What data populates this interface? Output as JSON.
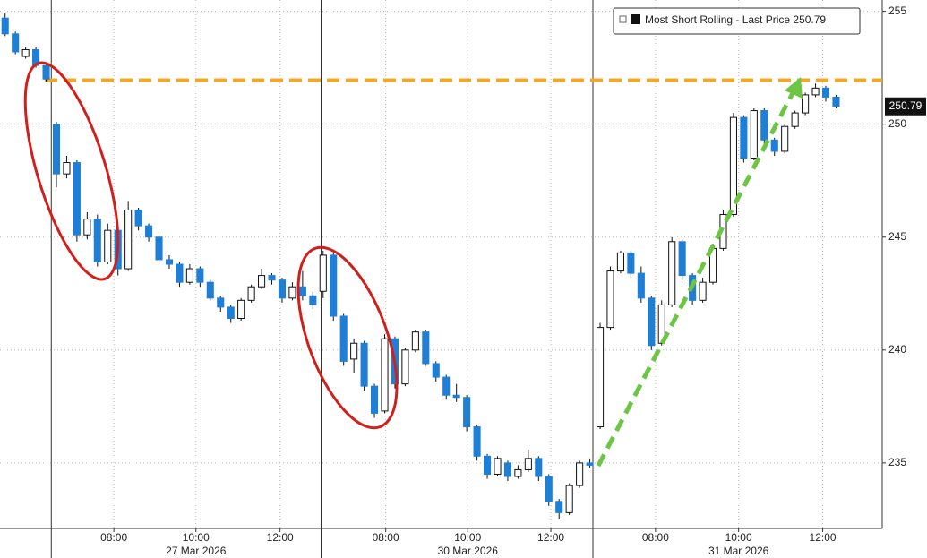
{
  "chart_data": {
    "type": "candlestick",
    "series": [
      {
        "name": "Most Short Rolling - Last Price 250.79",
        "color": "#1f7fd6",
        "up_color": "#ffffff",
        "x": [
          0,
          1,
          2,
          3,
          4,
          5,
          6,
          7,
          8,
          9,
          10,
          11,
          12,
          13,
          14,
          15,
          16,
          17,
          18,
          19,
          20,
          21,
          22,
          23,
          24,
          25,
          26,
          27,
          28,
          29,
          30,
          31,
          32,
          33,
          34,
          35,
          36,
          37,
          38,
          39,
          40,
          41,
          42,
          43,
          44,
          45,
          46,
          47,
          48,
          49,
          50,
          51,
          52,
          53,
          54,
          55,
          56,
          57,
          58,
          59,
          60,
          61,
          62,
          63,
          64,
          65,
          66,
          67,
          68,
          69,
          70,
          71,
          72,
          73,
          74,
          75,
          76,
          77,
          78,
          79,
          80,
          81
        ],
        "open": [
          254.7,
          254.0,
          253.0,
          253.3,
          252.6,
          250.0,
          247.8,
          248.3,
          245.1,
          245.8,
          243.9,
          245.3,
          243.6,
          246.2,
          245.5,
          245.0,
          244.0,
          243.8,
          243.0,
          243.6,
          243.0,
          242.3,
          241.9,
          241.4,
          242.2,
          242.8,
          243.3,
          243.1,
          242.3,
          242.8,
          242.4,
          242.6,
          244.2,
          241.5,
          239.6,
          240.3,
          238.4,
          237.3,
          240.5,
          238.5,
          240.0,
          240.8,
          239.4,
          238.8,
          238.0,
          237.9,
          236.6,
          235.3,
          234.5,
          235.0,
          234.4,
          234.7,
          235.2,
          234.4,
          233.3,
          232.8,
          234.0,
          235.0,
          236.6,
          241.0,
          243.5,
          244.3,
          243.4,
          242.3,
          240.3,
          242.0,
          244.8,
          243.3,
          242.2,
          243.0,
          244.5,
          246.0,
          250.3,
          248.5,
          250.6,
          249.3,
          248.8,
          249.9,
          250.5,
          251.3,
          251.6,
          251.2
        ],
        "high": [
          254.9,
          254.1,
          253.4,
          253.4,
          252.7,
          250.1,
          248.6,
          248.4,
          246.1,
          246.0,
          245.6,
          245.4,
          246.6,
          246.3,
          245.6,
          245.1,
          244.2,
          243.9,
          243.8,
          243.7,
          243.1,
          242.4,
          242.0,
          242.3,
          242.9,
          243.6,
          243.4,
          243.2,
          243.0,
          243.5,
          242.6,
          244.4,
          244.3,
          241.6,
          240.5,
          240.4,
          238.5,
          240.7,
          240.6,
          240.1,
          240.9,
          240.9,
          239.5,
          238.9,
          238.5,
          238.0,
          236.7,
          235.4,
          235.3,
          235.1,
          234.9,
          235.6,
          235.3,
          234.5,
          233.4,
          234.1,
          235.1,
          235.2,
          241.2,
          243.7,
          244.4,
          244.4,
          243.7,
          242.4,
          242.2,
          245.0,
          244.9,
          243.4,
          243.2,
          244.7,
          246.2,
          250.5,
          250.4,
          250.7,
          250.7,
          249.4,
          250.0,
          250.6,
          251.4,
          251.8,
          251.7,
          251.3
        ],
        "low": [
          253.9,
          253.1,
          252.9,
          252.5,
          251.9,
          247.2,
          247.6,
          244.8,
          244.9,
          243.7,
          243.8,
          243.3,
          243.5,
          245.3,
          244.8,
          243.8,
          243.6,
          242.8,
          242.9,
          242.8,
          242.2,
          241.7,
          241.2,
          241.3,
          242.1,
          242.7,
          242.9,
          242.1,
          242.2,
          242.2,
          241.8,
          242.3,
          241.3,
          239.3,
          239.0,
          238.2,
          237.0,
          237.2,
          238.3,
          238.4,
          239.9,
          239.3,
          238.6,
          237.8,
          237.7,
          236.4,
          235.1,
          234.3,
          234.4,
          234.2,
          234.3,
          234.6,
          234.2,
          233.1,
          232.5,
          232.7,
          233.9,
          234.8,
          236.5,
          240.9,
          243.4,
          243.2,
          242.1,
          240.0,
          240.2,
          241.9,
          243.1,
          242.0,
          242.1,
          242.9,
          244.4,
          245.9,
          248.3,
          248.4,
          249.1,
          248.6,
          248.7,
          249.8,
          250.4,
          251.2,
          251.0,
          250.7
        ],
        "close": [
          254.0,
          253.2,
          253.3,
          252.6,
          252.0,
          247.8,
          248.3,
          245.1,
          245.8,
          243.9,
          245.3,
          243.6,
          246.2,
          245.5,
          245.0,
          244.0,
          243.8,
          243.0,
          243.6,
          243.0,
          242.3,
          241.9,
          241.4,
          242.2,
          242.8,
          243.3,
          243.1,
          242.3,
          242.8,
          242.4,
          242.0,
          244.2,
          241.5,
          239.5,
          240.3,
          238.4,
          237.2,
          240.5,
          238.5,
          240.0,
          240.8,
          239.4,
          238.8,
          238.0,
          237.9,
          236.6,
          235.3,
          234.5,
          235.2,
          234.4,
          234.7,
          235.2,
          234.4,
          233.3,
          232.8,
          234.0,
          235.0,
          234.9,
          241.0,
          243.5,
          244.3,
          243.4,
          242.3,
          240.2,
          242.0,
          244.8,
          243.3,
          242.2,
          243.0,
          244.5,
          246.0,
          250.3,
          248.5,
          250.6,
          249.3,
          248.8,
          249.9,
          250.5,
          251.3,
          251.6,
          251.2,
          250.79
        ]
      }
    ],
    "last_price": 250.79,
    "xlim": [
      -0.5,
      85.5
    ],
    "xticks": [
      {
        "value": 10.6,
        "label": "08:00"
      },
      {
        "value": 18.6,
        "label": "10:00"
      },
      {
        "value": 26.8,
        "label": "12:00"
      },
      {
        "value": 37.1,
        "label": "08:00"
      },
      {
        "value": 45.1,
        "label": "10:00"
      },
      {
        "value": 53.2,
        "label": "12:00"
      },
      {
        "value": 63.4,
        "label": "08:00"
      },
      {
        "value": 71.5,
        "label": "10:00"
      },
      {
        "value": 79.7,
        "label": "12:00"
      }
    ],
    "date_labels": [
      {
        "value": 18.6,
        "label": "27 Mar 2026"
      },
      {
        "value": 45.1,
        "label": "30 Mar 2026"
      },
      {
        "value": 71.5,
        "label": "31 Mar 2026"
      }
    ],
    "day_breaks": [
      4.5,
      30.8,
      57.3
    ],
    "ylim": [
      232.1,
      255.5
    ],
    "yticks": [
      235,
      240,
      245,
      250,
      255
    ],
    "grid": true,
    "reference_line": {
      "value": 251.95,
      "color": "#f5a623"
    }
  }
}
